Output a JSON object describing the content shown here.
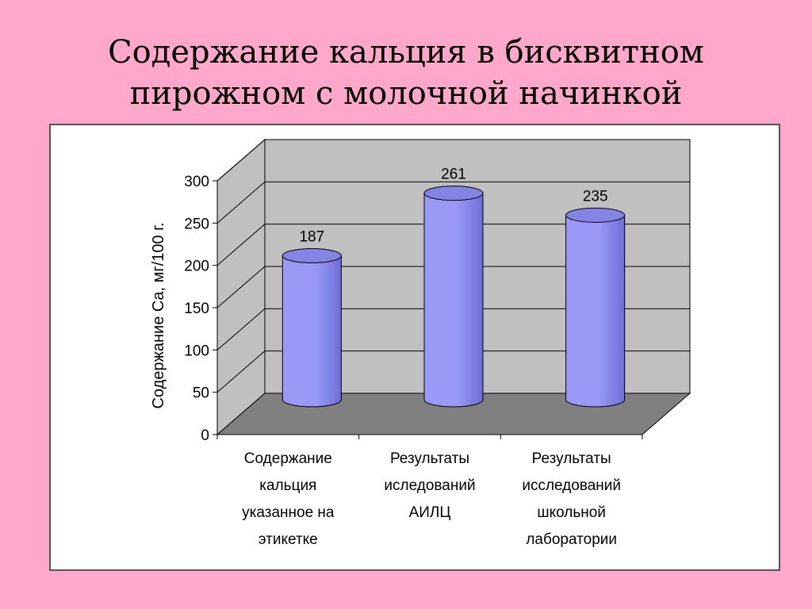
{
  "slide": {
    "title_lines": [
      "Содержание кальция в бисквитном",
      "пирожном с молочной начинкой"
    ]
  },
  "colors": {
    "background": "#ffa8cc",
    "back_wall": "#c0c0c0",
    "side_wall": "#c0c0c0",
    "floor": "#808080",
    "bar": "#9a9af6",
    "bar_dark": "#6e6ed8",
    "bar_top": "#8484e4"
  },
  "chart_data": {
    "type": "bar",
    "style": "3d-cylinder",
    "categories": [
      [
        "Содержание",
        "кальция",
        "указанное на",
        "этикетке"
      ],
      [
        "Результаты",
        "иследований",
        "АИЛЦ"
      ],
      [
        "Результаты",
        "исследований",
        "школьной",
        "лаборатории"
      ]
    ],
    "values": [
      187,
      261,
      235
    ],
    "data_labels": [
      "187",
      "261",
      "235"
    ],
    "ylabel": "Содержание Ca, мг/100 г.",
    "ylim": [
      0,
      300
    ],
    "yticks": [
      0,
      50,
      100,
      150,
      200,
      250,
      300
    ],
    "grid": true,
    "legend": "none"
  }
}
